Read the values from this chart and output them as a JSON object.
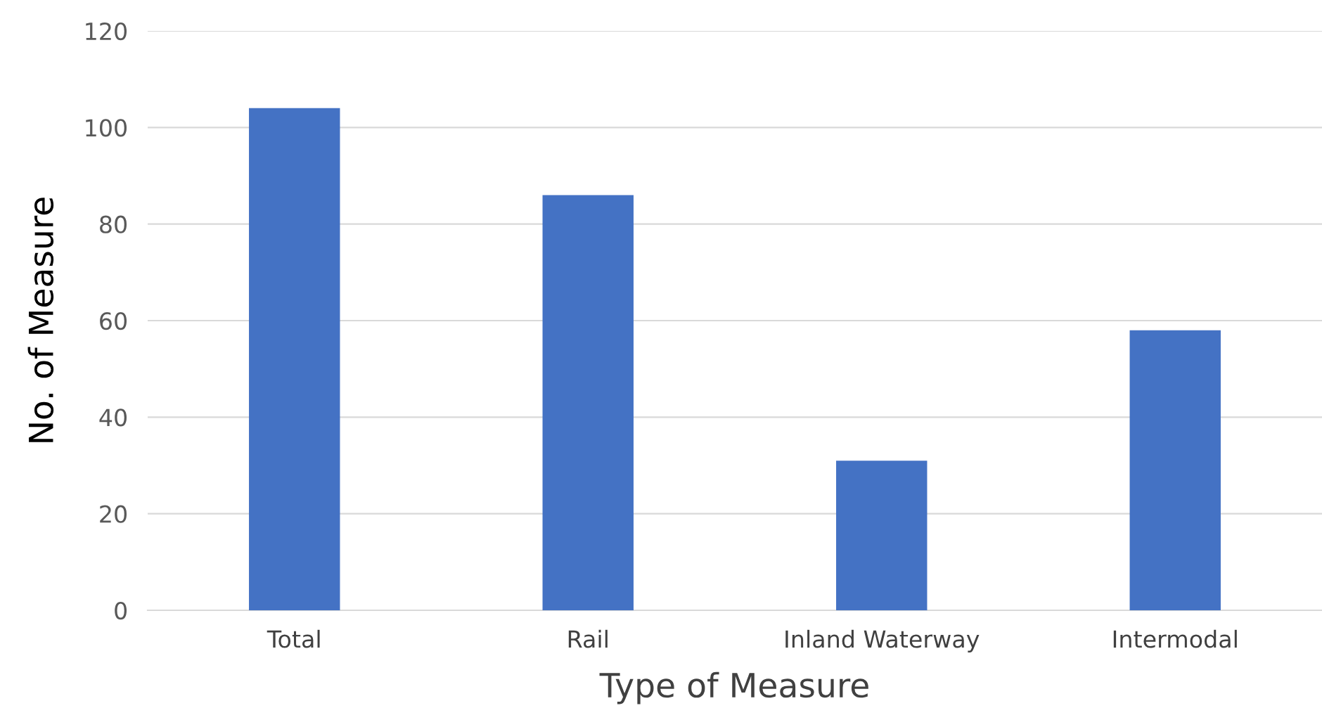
{
  "chart_data": {
    "type": "bar",
    "xlabel": "Type of Measure",
    "ylabel": "No. of Measure",
    "categories": [
      "Total",
      "Rail",
      "Inland Waterway",
      "Intermodal"
    ],
    "values": [
      104,
      86,
      31,
      58
    ],
    "color": "#4472c4",
    "ylim": [
      0,
      120
    ],
    "yticks": [
      0,
      20,
      40,
      60,
      80,
      100,
      120
    ],
    "grid": "y",
    "legend": false
  }
}
